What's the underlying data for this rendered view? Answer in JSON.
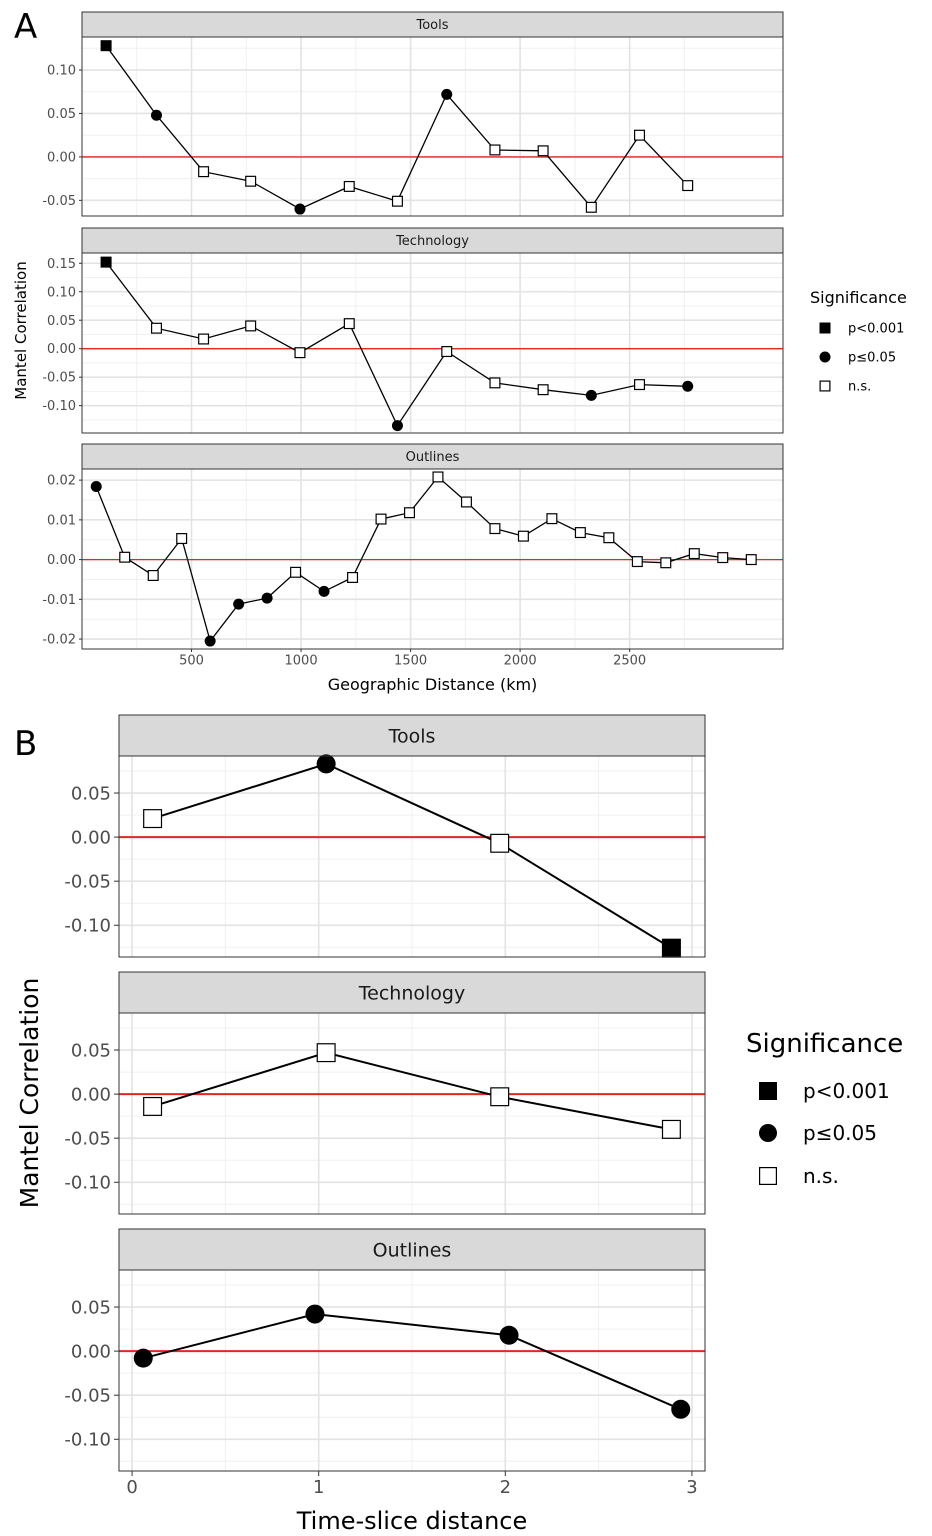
{
  "shape_legend": {
    "square_filled": "p<0.001",
    "circle_filled": "p≤0.05",
    "square_open": "n.s."
  },
  "chart_data": [
    {
      "type": "line",
      "label": "A",
      "xlabel": "Geographic Distance (km)",
      "ylabel": "Mantel Correlation",
      "xlim": [
        0,
        3200
      ],
      "x_ticks": [
        "500",
        "1000",
        "1500",
        "2000",
        "2500"
      ],
      "x_tick_values": [
        500,
        1000,
        1500,
        2000,
        2500
      ],
      "grid": true,
      "reference_line": {
        "y": 0,
        "color": "#e8251e"
      },
      "legend": {
        "title": "Significance",
        "position": "right",
        "entries": [
          "p<0.001",
          "p≤0.05",
          "n.s."
        ]
      },
      "panels": [
        {
          "title": "Tools",
          "ylim": [
            -0.068,
            0.138
          ],
          "y_ticks": [
            "0.10",
            "0.05",
            "0.00",
            "-0.05"
          ],
          "y_tick_values": [
            0.1,
            0.05,
            0.0,
            -0.05
          ],
          "points": [
            {
              "x": 110,
              "y": 0.128,
              "sig": "p<0.001"
            },
            {
              "x": 340,
              "y": 0.048,
              "sig": "p≤0.05"
            },
            {
              "x": 555,
              "y": -0.017,
              "sig": "n.s."
            },
            {
              "x": 770,
              "y": -0.028,
              "sig": "n.s."
            },
            {
              "x": 995,
              "y": -0.06,
              "sig": "p≤0.05"
            },
            {
              "x": 1220,
              "y": -0.034,
              "sig": "n.s."
            },
            {
              "x": 1440,
              "y": -0.051,
              "sig": "n.s."
            },
            {
              "x": 1665,
              "y": 0.072,
              "sig": "p≤0.05"
            },
            {
              "x": 1885,
              "y": 0.008,
              "sig": "n.s."
            },
            {
              "x": 2105,
              "y": 0.007,
              "sig": "n.s."
            },
            {
              "x": 2325,
              "y": -0.058,
              "sig": "n.s."
            },
            {
              "x": 2545,
              "y": 0.025,
              "sig": "n.s."
            },
            {
              "x": 2765,
              "y": -0.033,
              "sig": "n.s."
            }
          ]
        },
        {
          "title": "Technology",
          "ylim": [
            -0.148,
            0.168
          ],
          "y_ticks": [
            "0.15",
            "0.10",
            "0.05",
            "0.00",
            "-0.05",
            "-0.10"
          ],
          "y_tick_values": [
            0.15,
            0.1,
            0.05,
            0.0,
            -0.05,
            -0.1
          ],
          "points": [
            {
              "x": 110,
              "y": 0.152,
              "sig": "p<0.001"
            },
            {
              "x": 340,
              "y": 0.036,
              "sig": "n.s."
            },
            {
              "x": 555,
              "y": 0.017,
              "sig": "n.s."
            },
            {
              "x": 770,
              "y": 0.04,
              "sig": "n.s."
            },
            {
              "x": 995,
              "y": -0.007,
              "sig": "n.s."
            },
            {
              "x": 1220,
              "y": 0.044,
              "sig": "n.s."
            },
            {
              "x": 1440,
              "y": -0.135,
              "sig": "p≤0.05"
            },
            {
              "x": 1665,
              "y": -0.005,
              "sig": "n.s."
            },
            {
              "x": 1885,
              "y": -0.06,
              "sig": "n.s."
            },
            {
              "x": 2105,
              "y": -0.072,
              "sig": "n.s."
            },
            {
              "x": 2325,
              "y": -0.082,
              "sig": "p≤0.05"
            },
            {
              "x": 2545,
              "y": -0.063,
              "sig": "n.s."
            },
            {
              "x": 2765,
              "y": -0.066,
              "sig": "p≤0.05"
            }
          ]
        },
        {
          "title": "Outlines",
          "ylim": [
            -0.0225,
            0.0228
          ],
          "y_ticks": [
            "0.02",
            "0.01",
            "0.00",
            "-0.01",
            "-0.02"
          ],
          "y_tick_values": [
            0.02,
            0.01,
            0.0,
            -0.01,
            -0.02
          ],
          "points": [
            {
              "x": 65,
              "y": 0.0184,
              "sig": "p≤0.05"
            },
            {
              "x": 195,
              "y": 0.0006,
              "sig": "n.s."
            },
            {
              "x": 325,
              "y": -0.004,
              "sig": "n.s."
            },
            {
              "x": 455,
              "y": 0.0053,
              "sig": "n.s."
            },
            {
              "x": 585,
              "y": -0.0205,
              "sig": "p≤0.05"
            },
            {
              "x": 715,
              "y": -0.0112,
              "sig": "p≤0.05"
            },
            {
              "x": 845,
              "y": -0.0097,
              "sig": "p≤0.05"
            },
            {
              "x": 975,
              "y": -0.0032,
              "sig": "n.s."
            },
            {
              "x": 1105,
              "y": -0.008,
              "sig": "p≤0.05"
            },
            {
              "x": 1235,
              "y": -0.0045,
              "sig": "n.s."
            },
            {
              "x": 1365,
              "y": 0.0102,
              "sig": "n.s."
            },
            {
              "x": 1495,
              "y": 0.0118,
              "sig": "n.s."
            },
            {
              "x": 1625,
              "y": 0.0208,
              "sig": "n.s."
            },
            {
              "x": 1755,
              "y": 0.0145,
              "sig": "n.s."
            },
            {
              "x": 1885,
              "y": 0.0078,
              "sig": "n.s."
            },
            {
              "x": 2015,
              "y": 0.0059,
              "sig": "n.s."
            },
            {
              "x": 2145,
              "y": 0.0103,
              "sig": "n.s."
            },
            {
              "x": 2275,
              "y": 0.0068,
              "sig": "n.s."
            },
            {
              "x": 2405,
              "y": 0.0055,
              "sig": "n.s."
            },
            {
              "x": 2535,
              "y": -0.0005,
              "sig": "n.s."
            },
            {
              "x": 2665,
              "y": -0.0008,
              "sig": "n.s."
            },
            {
              "x": 2795,
              "y": 0.0015,
              "sig": "n.s."
            },
            {
              "x": 2925,
              "y": 0.0005,
              "sig": "n.s."
            },
            {
              "x": 3055,
              "y": 0.0,
              "sig": "n.s."
            }
          ]
        }
      ]
    },
    {
      "type": "line",
      "label": "B",
      "xlabel": "Time-slice distance",
      "ylabel": "Mantel Correlation",
      "xlim": [
        -0.07,
        3.07
      ],
      "x_ticks": [
        "0",
        "1",
        "2",
        "3"
      ],
      "x_tick_values": [
        0,
        1,
        2,
        3
      ],
      "grid": true,
      "reference_line": {
        "y": 0,
        "color": "#e8251e"
      },
      "legend": {
        "title": "Significance",
        "position": "right",
        "entries": [
          "p<0.001",
          "p≤0.05",
          "n.s."
        ]
      },
      "panels": [
        {
          "title": "Tools",
          "ylim": [
            -0.136,
            0.092
          ],
          "y_ticks": [
            "0.05",
            "0.00",
            "-0.05",
            "-0.10"
          ],
          "y_tick_values": [
            0.05,
            0.0,
            -0.05,
            -0.1
          ],
          "points": [
            {
              "x": 0.11,
              "y": 0.021,
              "sig": "n.s."
            },
            {
              "x": 1.04,
              "y": 0.083,
              "sig": "p≤0.05"
            },
            {
              "x": 1.97,
              "y": -0.007,
              "sig": "n.s."
            },
            {
              "x": 2.89,
              "y": -0.126,
              "sig": "p<0.001"
            }
          ]
        },
        {
          "title": "Technology",
          "ylim": [
            -0.136,
            0.092
          ],
          "y_ticks": [
            "0.05",
            "0.00",
            "-0.05",
            "-0.10"
          ],
          "y_tick_values": [
            0.05,
            0.0,
            -0.05,
            -0.1
          ],
          "points": [
            {
              "x": 0.11,
              "y": -0.014,
              "sig": "n.s."
            },
            {
              "x": 1.04,
              "y": 0.047,
              "sig": "n.s."
            },
            {
              "x": 1.97,
              "y": -0.003,
              "sig": "n.s."
            },
            {
              "x": 2.89,
              "y": -0.04,
              "sig": "n.s."
            }
          ]
        },
        {
          "title": "Outlines",
          "ylim": [
            -0.136,
            0.092
          ],
          "y_ticks": [
            "0.05",
            "0.00",
            "-0.05",
            "-0.10"
          ],
          "y_tick_values": [
            0.05,
            0.0,
            -0.05,
            -0.1
          ],
          "points": [
            {
              "x": 0.06,
              "y": -0.008,
              "sig": "p≤0.05"
            },
            {
              "x": 0.98,
              "y": 0.042,
              "sig": "p≤0.05"
            },
            {
              "x": 2.02,
              "y": 0.018,
              "sig": "p≤0.05"
            },
            {
              "x": 2.94,
              "y": -0.066,
              "sig": "p≤0.05"
            }
          ]
        }
      ]
    }
  ]
}
